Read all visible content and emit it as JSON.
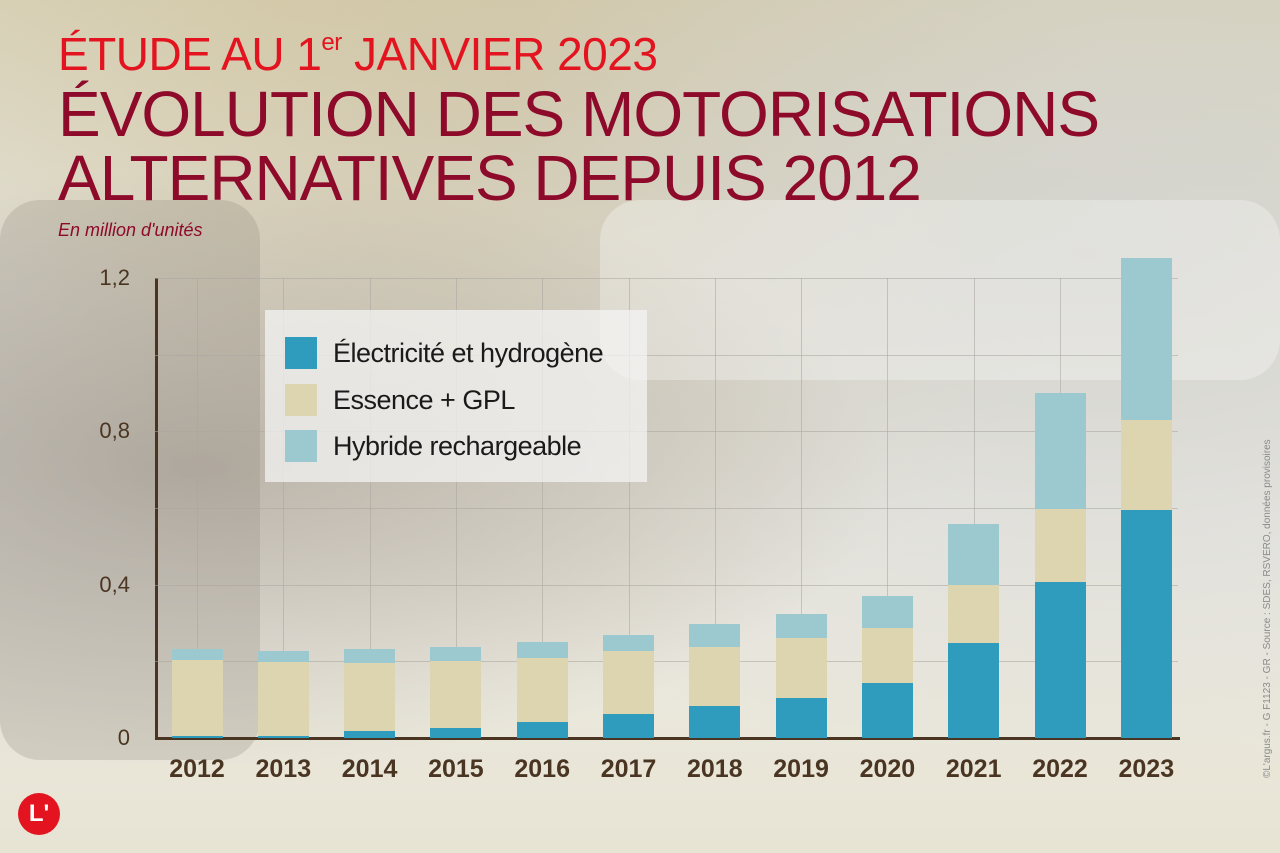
{
  "header": {
    "kicker_main": "ÉTUDE AU 1",
    "kicker_sup": "er",
    "kicker_rest": " JANVIER 2023",
    "title_line1": "ÉVOLUTION DES MOTORISATIONS",
    "title_line2": "ALTERNATIVES DEPUIS 2012",
    "subtitle": "En million d'unités"
  },
  "credit": "©L'argus.fr - G F1123 - GR - Source : SDES, RSVERO, données provisoires",
  "logo": {
    "text": "L'",
    "color": "#e3141f"
  },
  "colors": {
    "electric": "#309cbd",
    "essence": "#ddd5b0",
    "hybrid": "#9cc8cf",
    "axis": "#4a3522",
    "kicker": "#e3141f",
    "title": "#8e0a2a"
  },
  "legend": [
    {
      "label": "Électricité et hydrogène",
      "color": "#309cbd"
    },
    {
      "label": "Essence + GPL",
      "color": "#ddd5b0"
    },
    {
      "label": "Hybride rechargeable",
      "color": "#9cc8cf"
    }
  ],
  "chart_data": {
    "type": "bar",
    "stacked": true,
    "title": "Évolution des motorisations alternatives depuis 2012",
    "subtitle": "Étude au 1er janvier 2023",
    "xlabel": "",
    "ylabel": "En million d'unités",
    "ylim": [
      0,
      1.2
    ],
    "yticks": [
      "0",
      "0,4",
      "0,8",
      "1,2"
    ],
    "grid": true,
    "legend_position": "upper-left inside",
    "categories": [
      "2012",
      "2013",
      "2014",
      "2015",
      "2016",
      "2017",
      "2018",
      "2019",
      "2020",
      "2021",
      "2022",
      "2023"
    ],
    "series": [
      {
        "name": "Électricité et hydrogène",
        "values": [
          0.005,
          0.006,
          0.018,
          0.026,
          0.042,
          0.063,
          0.084,
          0.104,
          0.144,
          0.248,
          0.407,
          0.595
        ]
      },
      {
        "name": "Essence + GPL",
        "values": [
          0.199,
          0.192,
          0.178,
          0.175,
          0.167,
          0.164,
          0.154,
          0.157,
          0.143,
          0.151,
          0.191,
          0.235
        ]
      },
      {
        "name": "Hybride rechargeable",
        "values": [
          0.028,
          0.029,
          0.036,
          0.036,
          0.042,
          0.042,
          0.06,
          0.063,
          0.084,
          0.16,
          0.303,
          0.423
        ]
      }
    ],
    "totals": [
      0.232,
      0.227,
      0.232,
      0.237,
      0.251,
      0.269,
      0.298,
      0.324,
      0.371,
      0.559,
      0.901,
      1.253
    ],
    "source": "SDES, RSVERO, données provisoires"
  }
}
